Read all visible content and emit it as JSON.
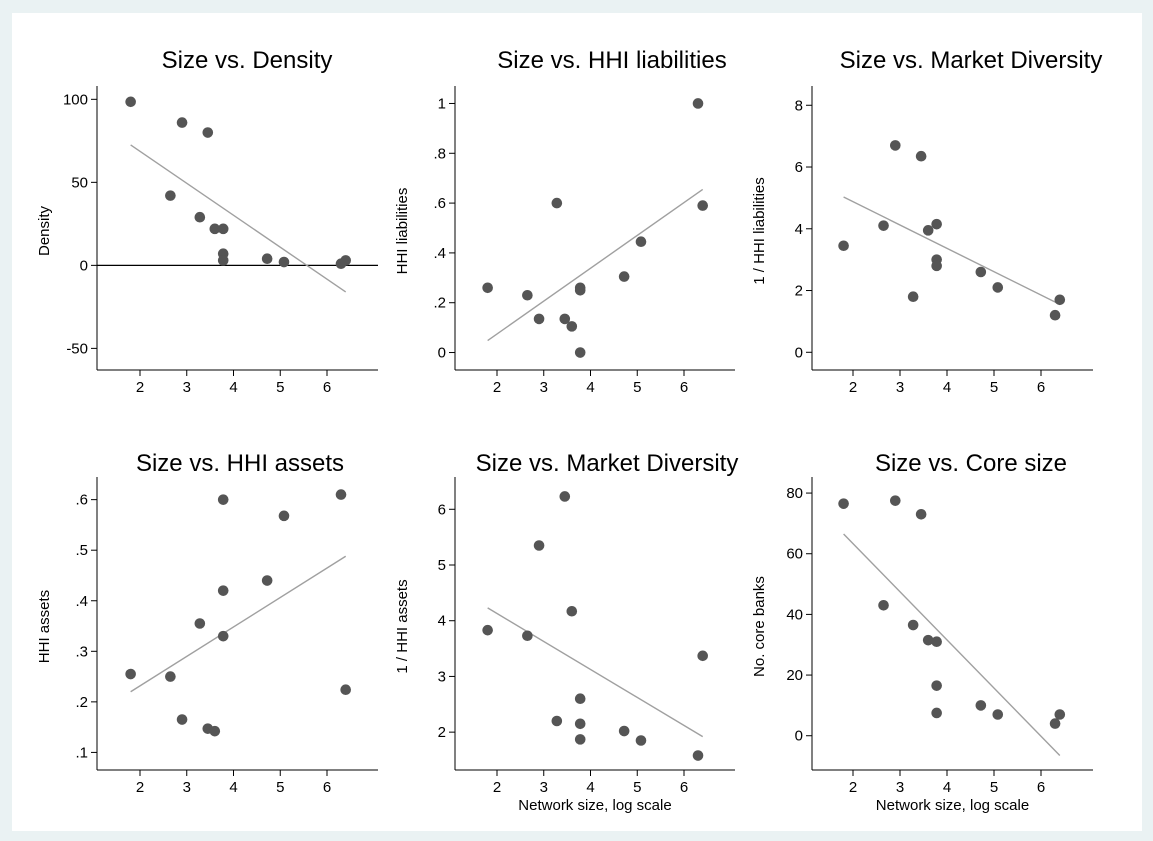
{
  "style": {
    "outer_bg": "#eaf2f3",
    "plot_bg": "#ffffff",
    "point_color": "#555555",
    "fit_color": "#a0a0a0",
    "axis_color": "#000000"
  },
  "chart_data": [
    {
      "type": "scatter",
      "title": "Size vs. Density",
      "xlabel": "",
      "ylabel": "Density",
      "xlim": [
        1.6,
        6.55
      ],
      "ylim": [
        -57,
        102
      ],
      "xticks": [
        2,
        3,
        4,
        5,
        6
      ],
      "xtick_labels": [
        "2",
        "3",
        "4",
        "5",
        "6"
      ],
      "yticks": [
        -50,
        0,
        50,
        100
      ],
      "ytick_labels": [
        "-50",
        "0",
        "50",
        "100"
      ],
      "zero_line": true,
      "points": [
        [
          1.8,
          98.5
        ],
        [
          2.65,
          42
        ],
        [
          2.9,
          86
        ],
        [
          3.28,
          29
        ],
        [
          3.45,
          80
        ],
        [
          3.6,
          22
        ],
        [
          3.78,
          22
        ],
        [
          3.78,
          7
        ],
        [
          3.78,
          3
        ],
        [
          4.72,
          4
        ],
        [
          5.08,
          2
        ],
        [
          6.3,
          1
        ],
        [
          6.4,
          3
        ]
      ],
      "fit_line": [
        [
          1.8,
          72.5
        ],
        [
          6.4,
          -16
        ]
      ],
      "grid": false,
      "legend": "none"
    },
    {
      "type": "scatter",
      "title": "Size vs. HHI liabilities",
      "xlabel": "",
      "ylabel": "HHI liabilities",
      "xlim": [
        1.6,
        6.55
      ],
      "ylim": [
        -0.03,
        1.03
      ],
      "xticks": [
        2,
        3,
        4,
        5,
        6
      ],
      "xtick_labels": [
        "2",
        "3",
        "4",
        "5",
        "6"
      ],
      "yticks": [
        0,
        0.2,
        0.4,
        0.6,
        0.8,
        1
      ],
      "ytick_labels": [
        "0",
        ".2",
        ".4",
        ".6",
        ".8",
        "1"
      ],
      "zero_line": false,
      "points": [
        [
          1.8,
          0.26
        ],
        [
          2.65,
          0.23
        ],
        [
          2.9,
          0.135
        ],
        [
          3.28,
          0.6
        ],
        [
          3.45,
          0.135
        ],
        [
          3.6,
          0.105
        ],
        [
          3.78,
          0.26
        ],
        [
          3.78,
          0.25
        ],
        [
          3.78,
          0.0
        ],
        [
          4.72,
          0.305
        ],
        [
          5.08,
          0.445
        ],
        [
          6.3,
          1.0
        ],
        [
          6.4,
          0.59
        ]
      ],
      "fit_line": [
        [
          1.8,
          0.048
        ],
        [
          6.4,
          0.655
        ]
      ],
      "grid": false,
      "legend": "none"
    },
    {
      "type": "scatter",
      "title": "Size vs. Market Diversity",
      "xlabel": "",
      "ylabel": "1 / HHI liabilities",
      "xlim": [
        1.6,
        6.55
      ],
      "ylim": [
        -0.25,
        8.3
      ],
      "xticks": [
        2,
        3,
        4,
        5,
        6
      ],
      "xtick_labels": [
        "2",
        "3",
        "4",
        "5",
        "6"
      ],
      "yticks": [
        0,
        2,
        4,
        6,
        8
      ],
      "ytick_labels": [
        "0",
        "2",
        "4",
        "6",
        "8"
      ],
      "zero_line": false,
      "points": [
        [
          1.8,
          3.45
        ],
        [
          2.65,
          4.1
        ],
        [
          2.9,
          6.7
        ],
        [
          3.28,
          1.8
        ],
        [
          3.45,
          6.35
        ],
        [
          3.6,
          3.95
        ],
        [
          3.78,
          4.15
        ],
        [
          3.78,
          3.0
        ],
        [
          3.78,
          2.8
        ],
        [
          4.72,
          2.6
        ],
        [
          5.08,
          2.1
        ],
        [
          6.3,
          1.2
        ],
        [
          6.4,
          1.7
        ]
      ],
      "fit_line": [
        [
          1.8,
          5.03
        ],
        [
          6.4,
          1.55
        ]
      ],
      "grid": false,
      "legend": "none"
    },
    {
      "type": "scatter",
      "title": "Size vs. HHI assets",
      "xlabel": "",
      "ylabel": "HHI assets",
      "xlim": [
        1.6,
        6.55
      ],
      "ylim": [
        0.085,
        0.625
      ],
      "xticks": [
        2,
        3,
        4,
        5,
        6
      ],
      "xtick_labels": [
        "2",
        "3",
        "4",
        "5",
        "6"
      ],
      "yticks": [
        0.1,
        0.2,
        0.3,
        0.4,
        0.5,
        0.6
      ],
      "ytick_labels": [
        ".1",
        ".2",
        ".3",
        ".4",
        ".5",
        ".6"
      ],
      "zero_line": false,
      "points": [
        [
          1.8,
          0.255
        ],
        [
          2.65,
          0.25
        ],
        [
          2.9,
          0.165
        ],
        [
          3.28,
          0.355
        ],
        [
          3.45,
          0.147
        ],
        [
          3.6,
          0.142
        ],
        [
          3.78,
          0.6
        ],
        [
          3.78,
          0.42
        ],
        [
          3.78,
          0.33
        ],
        [
          4.72,
          0.44
        ],
        [
          5.08,
          0.568
        ],
        [
          6.3,
          0.61
        ],
        [
          6.4,
          0.224
        ]
      ],
      "fit_line": [
        [
          1.8,
          0.22
        ],
        [
          6.4,
          0.488
        ]
      ],
      "grid": false,
      "legend": "none"
    },
    {
      "type": "scatter",
      "title": "Size vs. Market Diversity",
      "xlabel": "Network size, log scale",
      "ylabel": "1 / HHI assets",
      "xlim": [
        1.6,
        6.55
      ],
      "ylim": [
        1.5,
        6.4
      ],
      "xticks": [
        2,
        3,
        4,
        5,
        6
      ],
      "xtick_labels": [
        "2",
        "3",
        "4",
        "5",
        "6"
      ],
      "yticks": [
        2,
        3,
        4,
        5,
        6
      ],
      "ytick_labels": [
        "2",
        "3",
        "4",
        "5",
        "6"
      ],
      "zero_line": false,
      "points": [
        [
          1.8,
          3.83
        ],
        [
          2.65,
          3.73
        ],
        [
          2.9,
          5.35
        ],
        [
          3.28,
          2.2
        ],
        [
          3.45,
          6.23
        ],
        [
          3.6,
          4.17
        ],
        [
          3.78,
          2.6
        ],
        [
          3.78,
          2.15
        ],
        [
          3.78,
          1.87
        ],
        [
          4.72,
          2.02
        ],
        [
          5.08,
          1.85
        ],
        [
          6.3,
          1.58
        ],
        [
          6.4,
          3.37
        ]
      ],
      "fit_line": [
        [
          1.8,
          4.23
        ],
        [
          6.4,
          1.92
        ]
      ],
      "grid": false,
      "legend": "none"
    },
    {
      "type": "scatter",
      "title": "Size vs. Core size",
      "xlabel": "Network size, log scale",
      "ylabel": "No. core banks",
      "xlim": [
        1.6,
        6.55
      ],
      "ylim": [
        -8,
        82
      ],
      "xticks": [
        2,
        3,
        4,
        5,
        6
      ],
      "xtick_labels": [
        "2",
        "3",
        "4",
        "5",
        "6"
      ],
      "yticks": [
        0,
        20,
        40,
        60,
        80
      ],
      "ytick_labels": [
        "0",
        "20",
        "40",
        "60",
        "80"
      ],
      "zero_line": false,
      "points": [
        [
          1.8,
          76.5
        ],
        [
          2.65,
          43
        ],
        [
          2.9,
          77.5
        ],
        [
          3.28,
          36.5
        ],
        [
          3.45,
          73
        ],
        [
          3.6,
          31.5
        ],
        [
          3.78,
          31
        ],
        [
          3.78,
          16.5
        ],
        [
          3.78,
          7.5
        ],
        [
          4.72,
          10
        ],
        [
          5.08,
          7
        ],
        [
          6.3,
          4
        ],
        [
          6.4,
          7
        ]
      ],
      "fit_line": [
        [
          1.8,
          66.5
        ],
        [
          6.4,
          -6.5
        ]
      ],
      "grid": false,
      "legend": "none"
    }
  ]
}
